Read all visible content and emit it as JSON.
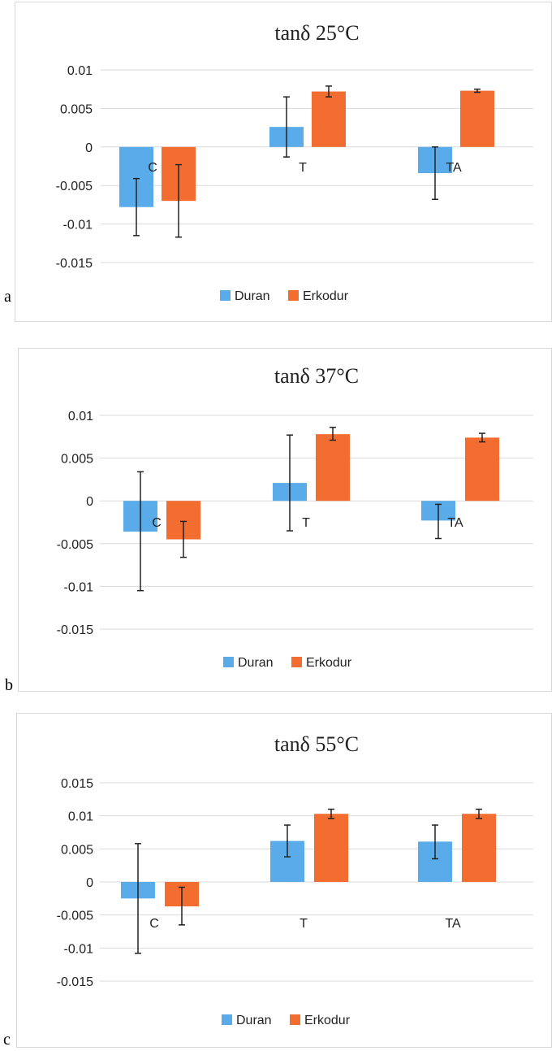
{
  "colors": {
    "Duran": "#5aabea",
    "Erkodur": "#f36d30",
    "grid": "#d9d9d9",
    "error": "#222222"
  },
  "legend": [
    "Duran",
    "Erkodur"
  ],
  "panels": [
    {
      "label": "a"
    },
    {
      "label": "b"
    },
    {
      "label": "c"
    }
  ],
  "chart_data": [
    {
      "type": "bar",
      "title": "tanδ 25°C",
      "categories": [
        "C",
        "T",
        "TA"
      ],
      "ylim": [
        -0.015,
        0.01
      ],
      "yticks": [
        0.01,
        0.005,
        0,
        -0.005,
        -0.01,
        -0.015
      ],
      "ytick_labels": [
        "0.01",
        "0.005",
        "0",
        "-0.005",
        "-0.01",
        "-0.015"
      ],
      "grid": true,
      "legend_position": "bottom",
      "series": [
        {
          "name": "Duran",
          "values": [
            -0.0078,
            0.0026,
            -0.0034
          ],
          "error_low": [
            -0.0115,
            -0.0013,
            -0.0068
          ],
          "error_high": [
            -0.0041,
            0.0065,
            0.0
          ]
        },
        {
          "name": "Erkodur",
          "values": [
            -0.007,
            0.0072,
            0.0073
          ],
          "error_low": [
            -0.0117,
            0.0065,
            0.0071
          ],
          "error_high": [
            -0.0023,
            0.0079,
            0.0075
          ]
        }
      ]
    },
    {
      "type": "bar",
      "title": "tanδ 37°C",
      "categories": [
        "C",
        "T",
        "TA"
      ],
      "ylim": [
        -0.015,
        0.01
      ],
      "yticks": [
        0.01,
        0.005,
        0,
        -0.005,
        -0.01,
        -0.015
      ],
      "ytick_labels": [
        "0.01",
        "0.005",
        "0",
        "-0.005",
        "-0.01",
        "-0.015"
      ],
      "grid": true,
      "legend_position": "bottom",
      "series": [
        {
          "name": "Duran",
          "values": [
            -0.0036,
            0.0021,
            -0.0023
          ],
          "error_low": [
            -0.0105,
            -0.0035,
            -0.0044
          ],
          "error_high": [
            0.0034,
            0.0077,
            -0.0004
          ]
        },
        {
          "name": "Erkodur",
          "values": [
            -0.0045,
            0.0078,
            0.0074
          ],
          "error_low": [
            -0.0066,
            0.0071,
            0.0069
          ],
          "error_high": [
            -0.0024,
            0.0086,
            0.0079
          ]
        }
      ]
    },
    {
      "type": "bar",
      "title": "tanδ 55°C",
      "categories": [
        "C",
        "T",
        "TA"
      ],
      "ylim": [
        -0.015,
        0.015
      ],
      "yticks": [
        0.015,
        0.01,
        0.005,
        0,
        -0.005,
        -0.01,
        -0.015
      ],
      "ytick_labels": [
        "0.015",
        "0.01",
        "0.005",
        "0",
        "-0.005",
        "-0.01",
        "-0.015"
      ],
      "grid": true,
      "legend_position": "bottom",
      "series": [
        {
          "name": "Duran",
          "values": [
            -0.0025,
            0.0062,
            0.0061
          ],
          "error_low": [
            -0.0108,
            0.0038,
            0.0035
          ],
          "error_high": [
            0.0058,
            0.0086,
            0.0086
          ]
        },
        {
          "name": "Erkodur",
          "values": [
            -0.0037,
            0.0103,
            0.0103
          ],
          "error_low": [
            -0.0065,
            0.0096,
            0.0096
          ],
          "error_high": [
            -0.0008,
            0.011,
            0.011
          ]
        }
      ]
    }
  ]
}
